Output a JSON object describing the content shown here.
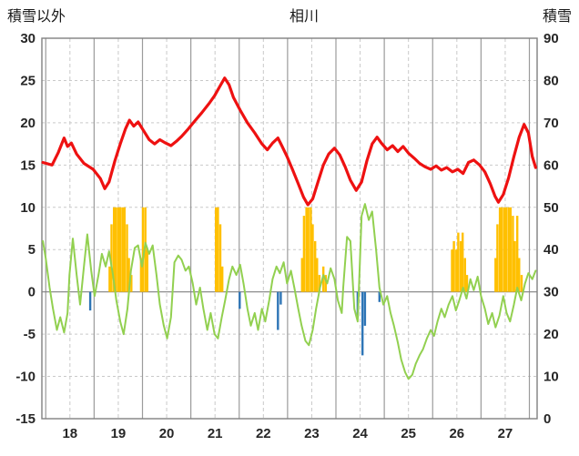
{
  "header": {
    "left_axis_title": "積雪以外",
    "title": "相川",
    "right_axis_title": "積雪"
  },
  "chart_data": {
    "type": "line",
    "title": "相川",
    "left_axis": {
      "title": "積雪以外",
      "min": -15,
      "max": 30,
      "step": 5,
      "ticks": [
        "30",
        "25",
        "20",
        "15",
        "10",
        "5",
        "0",
        "-5",
        "-10",
        "-15"
      ]
    },
    "right_axis": {
      "title": "積雪",
      "min": 0,
      "max": 90,
      "step": 10,
      "ticks": [
        "90",
        "80",
        "70",
        "60",
        "50",
        "40",
        "30",
        "20",
        "10",
        "0"
      ]
    },
    "x_axis": {
      "min": 17.92,
      "max": 28.16,
      "labels": [
        "18",
        "19",
        "20",
        "21",
        "22",
        "23",
        "24",
        "25",
        "26",
        "27"
      ]
    },
    "colors": {
      "grid_major": "#9b9b9b",
      "grid_minor": "#c9c9c9",
      "axis_line": "#808080",
      "text": "#262626"
    },
    "series": [
      {
        "name": "orange-bars",
        "type": "bar",
        "color": "#ffc000",
        "points": [
          [
            19.32,
            3
          ],
          [
            19.36,
            8
          ],
          [
            19.41,
            10
          ],
          [
            19.45,
            10
          ],
          [
            19.5,
            10
          ],
          [
            19.54,
            10
          ],
          [
            19.59,
            10
          ],
          [
            19.63,
            10
          ],
          [
            19.68,
            8
          ],
          [
            19.72,
            4
          ],
          [
            19.77,
            2
          ],
          [
            19.97,
            4
          ],
          [
            20.01,
            10
          ],
          [
            20.06,
            10
          ],
          [
            20.1,
            5
          ],
          [
            21.52,
            10
          ],
          [
            21.56,
            10
          ],
          [
            21.61,
            8
          ],
          [
            21.65,
            3
          ],
          [
            23.3,
            4
          ],
          [
            23.34,
            9
          ],
          [
            23.39,
            10
          ],
          [
            23.43,
            10
          ],
          [
            23.48,
            10
          ],
          [
            23.52,
            8
          ],
          [
            23.57,
            6
          ],
          [
            23.61,
            4
          ],
          [
            23.66,
            2
          ],
          [
            23.74,
            3
          ],
          [
            23.79,
            2
          ],
          [
            26.4,
            5
          ],
          [
            26.44,
            6
          ],
          [
            26.49,
            5
          ],
          [
            26.53,
            7
          ],
          [
            26.58,
            6
          ],
          [
            26.62,
            7
          ],
          [
            26.67,
            4
          ],
          [
            26.71,
            2
          ],
          [
            27.3,
            4
          ],
          [
            27.34,
            8
          ],
          [
            27.39,
            10
          ],
          [
            27.43,
            10
          ],
          [
            27.48,
            10
          ],
          [
            27.52,
            10
          ],
          [
            27.57,
            10
          ],
          [
            27.61,
            10
          ],
          [
            27.66,
            9
          ],
          [
            27.7,
            6
          ],
          [
            27.75,
            9
          ],
          [
            27.79,
            4
          ],
          [
            27.84,
            2
          ]
        ]
      },
      {
        "name": "blue-bars",
        "type": "bar",
        "color": "#2e75b6",
        "points": [
          [
            18.92,
            -2.2
          ],
          [
            22.01,
            -2.0
          ],
          [
            22.8,
            -4.5
          ],
          [
            22.86,
            -1.5
          ],
          [
            24.45,
            -3.0
          ],
          [
            24.55,
            -7.5
          ],
          [
            24.6,
            -4.0
          ],
          [
            24.9,
            -1.2
          ]
        ]
      },
      {
        "name": "green-series",
        "type": "line",
        "color": "#92d050",
        "width": 2,
        "points": [
          [
            17.94,
            6.0
          ],
          [
            18.0,
            4.0
          ],
          [
            18.08,
            0.5
          ],
          [
            18.15,
            -2.0
          ],
          [
            18.23,
            -4.5
          ],
          [
            18.3,
            -3.0
          ],
          [
            18.38,
            -4.8
          ],
          [
            18.45,
            -2.5
          ],
          [
            18.49,
            2.0
          ],
          [
            18.56,
            6.3
          ],
          [
            18.64,
            2.0
          ],
          [
            18.71,
            -1.5
          ],
          [
            18.79,
            3.0
          ],
          [
            18.86,
            6.8
          ],
          [
            18.94,
            2.5
          ],
          [
            19.01,
            -0.5
          ],
          [
            19.09,
            2.0
          ],
          [
            19.16,
            4.5
          ],
          [
            19.24,
            3.0
          ],
          [
            19.31,
            4.8
          ],
          [
            19.39,
            2.0
          ],
          [
            19.46,
            -1.0
          ],
          [
            19.54,
            -3.5
          ],
          [
            19.61,
            -5.0
          ],
          [
            19.69,
            -2.0
          ],
          [
            19.76,
            2.5
          ],
          [
            19.84,
            5.2
          ],
          [
            19.91,
            5.5
          ],
          [
            19.99,
            3.0
          ],
          [
            20.06,
            5.8
          ],
          [
            20.14,
            4.5
          ],
          [
            20.21,
            5.5
          ],
          [
            20.29,
            2.0
          ],
          [
            20.36,
            -1.5
          ],
          [
            20.44,
            -4.0
          ],
          [
            20.51,
            -5.5
          ],
          [
            20.59,
            -3.0
          ],
          [
            20.66,
            3.5
          ],
          [
            20.74,
            4.3
          ],
          [
            20.81,
            3.8
          ],
          [
            20.89,
            2.5
          ],
          [
            20.96,
            3.0
          ],
          [
            21.04,
            1.0
          ],
          [
            21.11,
            -1.5
          ],
          [
            21.19,
            0.5
          ],
          [
            21.26,
            -2.0
          ],
          [
            21.34,
            -4.5
          ],
          [
            21.41,
            -2.5
          ],
          [
            21.49,
            -5.0
          ],
          [
            21.56,
            -5.5
          ],
          [
            21.64,
            -3.0
          ],
          [
            21.71,
            -1.0
          ],
          [
            21.79,
            1.5
          ],
          [
            21.86,
            3.0
          ],
          [
            21.94,
            2.0
          ],
          [
            22.02,
            3.2
          ],
          [
            22.09,
            1.0
          ],
          [
            22.17,
            -2.0
          ],
          [
            22.24,
            -4.0
          ],
          [
            22.32,
            -2.5
          ],
          [
            22.39,
            -4.5
          ],
          [
            22.47,
            -2.0
          ],
          [
            22.54,
            -3.5
          ],
          [
            22.62,
            -1.0
          ],
          [
            22.69,
            1.5
          ],
          [
            22.77,
            3.0
          ],
          [
            22.84,
            2.2
          ],
          [
            22.92,
            3.5
          ],
          [
            22.99,
            1.0
          ],
          [
            23.07,
            2.5
          ],
          [
            23.14,
            0.5
          ],
          [
            23.22,
            -2.0
          ],
          [
            23.29,
            -4.0
          ],
          [
            23.37,
            -5.8
          ],
          [
            23.44,
            -6.3
          ],
          [
            23.52,
            -4.5
          ],
          [
            23.59,
            -2.0
          ],
          [
            23.67,
            0.5
          ],
          [
            23.74,
            2.0
          ],
          [
            23.82,
            1.0
          ],
          [
            23.89,
            2.8
          ],
          [
            23.97,
            1.5
          ],
          [
            24.04,
            -1.0
          ],
          [
            24.12,
            -2.5
          ],
          [
            24.15,
            0.5
          ],
          [
            24.23,
            6.5
          ],
          [
            24.3,
            6.0
          ],
          [
            24.38,
            -2.0
          ],
          [
            24.45,
            -3.5
          ],
          [
            24.53,
            9.0
          ],
          [
            24.6,
            10.4
          ],
          [
            24.68,
            8.5
          ],
          [
            24.75,
            9.5
          ],
          [
            24.83,
            5.0
          ],
          [
            24.9,
            0.5
          ],
          [
            24.98,
            -1.5
          ],
          [
            25.06,
            -0.5
          ],
          [
            25.13,
            -2.5
          ],
          [
            25.2,
            -4.0
          ],
          [
            25.28,
            -6.0
          ],
          [
            25.35,
            -8.0
          ],
          [
            25.43,
            -9.5
          ],
          [
            25.5,
            -10.3
          ],
          [
            25.58,
            -9.8
          ],
          [
            25.65,
            -8.5
          ],
          [
            25.73,
            -7.5
          ],
          [
            25.8,
            -6.8
          ],
          [
            25.88,
            -5.5
          ],
          [
            25.96,
            -4.5
          ],
          [
            26.03,
            -5.2
          ],
          [
            26.1,
            -3.5
          ],
          [
            26.18,
            -2.0
          ],
          [
            26.25,
            -3.0
          ],
          [
            26.33,
            -1.5
          ],
          [
            26.41,
            -0.5
          ],
          [
            26.48,
            -2.2
          ],
          [
            26.55,
            -1.0
          ],
          [
            26.63,
            0.5
          ],
          [
            26.7,
            -0.8
          ],
          [
            26.78,
            1.5
          ],
          [
            26.85,
            0.2
          ],
          [
            26.93,
            1.8
          ],
          [
            27.0,
            -0.5
          ],
          [
            27.08,
            -2.0
          ],
          [
            27.15,
            -3.8
          ],
          [
            27.23,
            -2.5
          ],
          [
            27.3,
            -4.2
          ],
          [
            27.38,
            -2.8
          ],
          [
            27.46,
            -0.5
          ],
          [
            27.53,
            -2.5
          ],
          [
            27.6,
            -3.5
          ],
          [
            27.68,
            -1.5
          ],
          [
            27.75,
            0.5
          ],
          [
            27.83,
            -1.0
          ],
          [
            27.91,
            1.0
          ],
          [
            27.98,
            2.2
          ],
          [
            28.06,
            1.5
          ],
          [
            28.13,
            2.5
          ]
        ]
      },
      {
        "name": "red-series",
        "type": "line",
        "color": "#ee1111",
        "width": 3.2,
        "points": [
          [
            17.94,
            15.3
          ],
          [
            18.13,
            15.0
          ],
          [
            18.26,
            16.5
          ],
          [
            18.38,
            18.2
          ],
          [
            18.45,
            17.2
          ],
          [
            18.53,
            17.6
          ],
          [
            18.64,
            16.3
          ],
          [
            18.79,
            15.2
          ],
          [
            18.98,
            14.5
          ],
          [
            19.13,
            13.4
          ],
          [
            19.22,
            12.2
          ],
          [
            19.31,
            13.0
          ],
          [
            19.43,
            15.5
          ],
          [
            19.54,
            17.5
          ],
          [
            19.65,
            19.3
          ],
          [
            19.73,
            20.3
          ],
          [
            19.82,
            19.6
          ],
          [
            19.91,
            20.1
          ],
          [
            20.03,
            19.0
          ],
          [
            20.14,
            18.0
          ],
          [
            20.25,
            17.5
          ],
          [
            20.36,
            18.0
          ],
          [
            20.48,
            17.6
          ],
          [
            20.59,
            17.3
          ],
          [
            20.7,
            17.8
          ],
          [
            20.81,
            18.4
          ],
          [
            20.95,
            19.3
          ],
          [
            21.08,
            20.2
          ],
          [
            21.23,
            21.2
          ],
          [
            21.38,
            22.3
          ],
          [
            21.49,
            23.2
          ],
          [
            21.6,
            24.3
          ],
          [
            21.7,
            25.3
          ],
          [
            21.79,
            24.5
          ],
          [
            21.88,
            23.0
          ],
          [
            22.02,
            21.5
          ],
          [
            22.17,
            20.0
          ],
          [
            22.32,
            18.8
          ],
          [
            22.47,
            17.5
          ],
          [
            22.58,
            16.8
          ],
          [
            22.69,
            17.6
          ],
          [
            22.8,
            18.2
          ],
          [
            22.88,
            17.3
          ],
          [
            22.99,
            16.0
          ],
          [
            23.1,
            14.5
          ],
          [
            23.22,
            12.8
          ],
          [
            23.33,
            11.2
          ],
          [
            23.42,
            10.3
          ],
          [
            23.52,
            11.0
          ],
          [
            23.63,
            13.0
          ],
          [
            23.74,
            15.0
          ],
          [
            23.85,
            16.3
          ],
          [
            23.97,
            17.0
          ],
          [
            24.08,
            16.2
          ],
          [
            24.19,
            14.8
          ],
          [
            24.3,
            13.2
          ],
          [
            24.42,
            12.0
          ],
          [
            24.53,
            13.0
          ],
          [
            24.64,
            15.5
          ],
          [
            24.75,
            17.5
          ],
          [
            24.85,
            18.3
          ],
          [
            24.94,
            17.6
          ],
          [
            25.06,
            16.8
          ],
          [
            25.17,
            17.3
          ],
          [
            25.28,
            16.6
          ],
          [
            25.39,
            17.2
          ],
          [
            25.5,
            16.4
          ],
          [
            25.62,
            15.8
          ],
          [
            25.73,
            15.2
          ],
          [
            25.84,
            14.8
          ],
          [
            25.96,
            14.5
          ],
          [
            26.07,
            14.9
          ],
          [
            26.18,
            14.4
          ],
          [
            26.29,
            14.7
          ],
          [
            26.41,
            14.2
          ],
          [
            26.52,
            14.5
          ],
          [
            26.63,
            14.0
          ],
          [
            26.74,
            15.3
          ],
          [
            26.85,
            15.6
          ],
          [
            26.97,
            15.0
          ],
          [
            27.08,
            14.2
          ],
          [
            27.19,
            12.8
          ],
          [
            27.29,
            11.3
          ],
          [
            27.36,
            10.6
          ],
          [
            27.46,
            11.5
          ],
          [
            27.57,
            13.5
          ],
          [
            27.68,
            16.0
          ],
          [
            27.79,
            18.3
          ],
          [
            27.89,
            19.8
          ],
          [
            27.98,
            18.8
          ],
          [
            28.06,
            16.0
          ],
          [
            28.13,
            14.7
          ]
        ]
      }
    ]
  }
}
